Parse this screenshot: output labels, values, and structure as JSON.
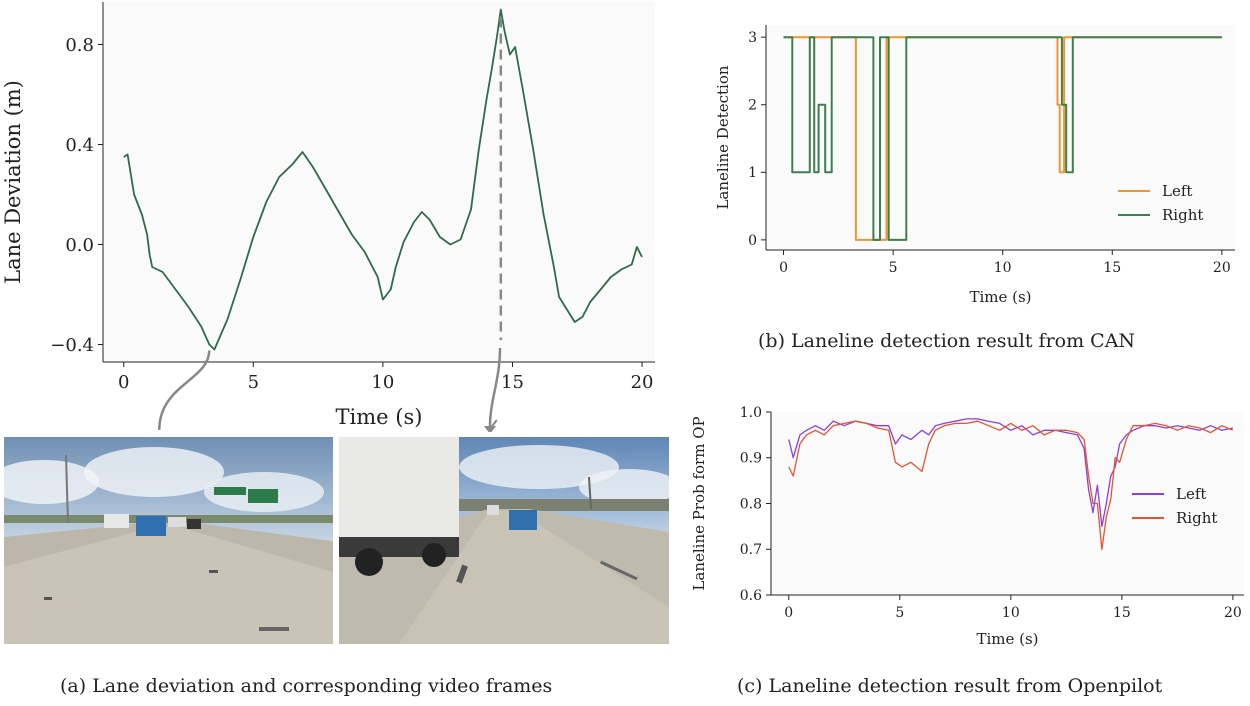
{
  "chart_data": [
    {
      "id": "a",
      "type": "line",
      "caption": "(a) Lane deviation and corresponding video frames",
      "xlabel": "Time (s)",
      "ylabel": "Lane Deviation (m)",
      "xlim": [
        -0.8,
        20.5
      ],
      "ylim": [
        -0.47,
        0.97
      ],
      "xticks": [
        0,
        5,
        10,
        15,
        20
      ],
      "yticks": [
        -0.4,
        0.0,
        0.4,
        0.8
      ],
      "ytick_labels": [
        "−0.4",
        "0.0",
        "0.4",
        "0.8"
      ],
      "series": [
        {
          "color": "#2e6b4a",
          "x": [
            0,
            0.15,
            0.4,
            0.7,
            0.9,
            1.0,
            1.1,
            1.5,
            2.0,
            2.5,
            3.0,
            3.3,
            3.5,
            4.0,
            4.5,
            5.0,
            5.5,
            6.0,
            6.5,
            6.9,
            7.3,
            7.8,
            8.3,
            8.8,
            9.3,
            9.8,
            10.0,
            10.3,
            10.5,
            10.8,
            11.2,
            11.5,
            11.8,
            12.2,
            12.6,
            13.0,
            13.4,
            13.7,
            14.0,
            14.2,
            14.4,
            14.55,
            14.7,
            14.9,
            15.1,
            15.4,
            15.8,
            16.2,
            16.6,
            16.8,
            17.1,
            17.4,
            17.7,
            18.0,
            18.4,
            18.8,
            19.2,
            19.6,
            19.8,
            20.0
          ],
          "values": [
            0.35,
            0.36,
            0.2,
            0.12,
            0.04,
            -0.04,
            -0.09,
            -0.11,
            -0.18,
            -0.25,
            -0.33,
            -0.4,
            -0.42,
            -0.3,
            -0.14,
            0.03,
            0.17,
            0.27,
            0.32,
            0.37,
            0.31,
            0.22,
            0.13,
            0.04,
            -0.03,
            -0.13,
            -0.22,
            -0.18,
            -0.09,
            0.01,
            0.09,
            0.13,
            0.1,
            0.03,
            0.0,
            0.02,
            0.14,
            0.38,
            0.58,
            0.7,
            0.83,
            0.94,
            0.85,
            0.76,
            0.79,
            0.62,
            0.38,
            0.12,
            -0.09,
            -0.21,
            -0.26,
            -0.31,
            -0.29,
            -0.23,
            -0.18,
            -0.13,
            -0.1,
            -0.08,
            -0.01,
            -0.05
          ]
        }
      ],
      "markers": [
        {
          "x": 3.3,
          "style": "arrow"
        },
        {
          "x": 14.55,
          "style": "dashed"
        }
      ]
    },
    {
      "id": "b",
      "type": "line",
      "caption": "(b) Laneline detection result from CAN",
      "xlabel": "Time (s)",
      "ylabel": "Laneline Detection",
      "xlim": [
        -0.8,
        20.6
      ],
      "ylim": [
        -0.15,
        3.18
      ],
      "xticks": [
        0,
        5,
        10,
        15,
        20
      ],
      "yticks": [
        0,
        1,
        2,
        3
      ],
      "legend": {
        "position": "right"
      },
      "series": [
        {
          "name": "Left",
          "color": "#f0962e",
          "x": [
            0,
            3.3,
            3.3,
            4.7,
            4.7,
            5.0,
            5.0,
            12.5,
            12.5,
            12.6,
            12.6,
            12.8,
            12.8,
            20
          ],
          "values": [
            3,
            3,
            0,
            0,
            3,
            3,
            3,
            3,
            2,
            2,
            1,
            1,
            3,
            3
          ]
        },
        {
          "name": "Right",
          "color": "#3f7f4f",
          "x": [
            0,
            0.4,
            0.4,
            1.2,
            1.2,
            1.4,
            1.4,
            1.6,
            1.6,
            1.9,
            1.9,
            2.2,
            2.2,
            4.1,
            4.1,
            4.4,
            4.4,
            4.8,
            4.8,
            5.2,
            5.2,
            5.6,
            5.6,
            12.7,
            12.7,
            12.9,
            12.9,
            13.2,
            13.2,
            20
          ],
          "values": [
            3,
            3,
            1,
            1,
            3,
            3,
            1,
            1,
            2,
            2,
            1,
            1,
            3,
            3,
            0,
            0,
            3,
            3,
            0,
            0,
            0,
            0,
            3,
            3,
            2,
            2,
            1,
            1,
            3,
            3
          ]
        }
      ]
    },
    {
      "id": "c",
      "type": "line",
      "caption": "(c) Laneline detection result from Openpilot",
      "xlabel": "Time (s)",
      "ylabel": "Laneline Prob form OP",
      "xlim": [
        -0.8,
        20.5
      ],
      "ylim": [
        0.6,
        1.0
      ],
      "xticks": [
        0,
        5,
        10,
        15,
        20
      ],
      "yticks": [
        0.6,
        0.7,
        0.8,
        0.9,
        1.0
      ],
      "ytick_labels": [
        "0.6",
        "0.7",
        "0.8",
        "0.9",
        "1.0"
      ],
      "legend": {
        "position": "right"
      },
      "series": [
        {
          "name": "Left",
          "color": "#8a3fe0",
          "x": [
            0,
            0.2,
            0.5,
            0.8,
            1.2,
            1.6,
            2.0,
            2.5,
            3.0,
            3.5,
            4.0,
            4.5,
            4.8,
            5.1,
            5.5,
            6.0,
            6.3,
            6.6,
            7.0,
            7.5,
            8.0,
            8.5,
            9.0,
            9.5,
            10.0,
            10.5,
            11.0,
            11.5,
            12.0,
            12.5,
            13.0,
            13.3,
            13.5,
            13.7,
            13.9,
            14.1,
            14.3,
            14.5,
            14.7,
            14.9,
            15.2,
            15.5,
            16.0,
            16.5,
            17.0,
            17.5,
            18.0,
            18.5,
            19.0,
            19.5,
            20.0
          ],
          "values": [
            0.94,
            0.9,
            0.95,
            0.96,
            0.97,
            0.96,
            0.98,
            0.97,
            0.98,
            0.975,
            0.97,
            0.97,
            0.93,
            0.95,
            0.94,
            0.96,
            0.95,
            0.97,
            0.975,
            0.98,
            0.985,
            0.985,
            0.98,
            0.975,
            0.96,
            0.97,
            0.95,
            0.96,
            0.96,
            0.955,
            0.95,
            0.92,
            0.83,
            0.78,
            0.84,
            0.75,
            0.8,
            0.86,
            0.88,
            0.93,
            0.95,
            0.96,
            0.97,
            0.97,
            0.965,
            0.97,
            0.965,
            0.96,
            0.97,
            0.96,
            0.965
          ]
        },
        {
          "name": "Right",
          "color": "#e8532a",
          "x": [
            0,
            0.2,
            0.5,
            0.8,
            1.2,
            1.6,
            2.0,
            2.5,
            3.0,
            3.5,
            4.0,
            4.5,
            4.8,
            5.1,
            5.5,
            6.0,
            6.3,
            6.6,
            7.0,
            7.5,
            8.0,
            8.5,
            9.0,
            9.5,
            10.0,
            10.5,
            11.0,
            11.5,
            12.0,
            12.5,
            13.0,
            13.3,
            13.5,
            13.7,
            13.9,
            14.1,
            14.3,
            14.5,
            14.7,
            14.9,
            15.2,
            15.5,
            16.0,
            16.5,
            17.0,
            17.5,
            18.0,
            18.5,
            19.0,
            19.5,
            20.0
          ],
          "values": [
            0.88,
            0.86,
            0.93,
            0.95,
            0.96,
            0.95,
            0.97,
            0.975,
            0.98,
            0.975,
            0.965,
            0.96,
            0.89,
            0.88,
            0.89,
            0.87,
            0.93,
            0.96,
            0.97,
            0.975,
            0.975,
            0.98,
            0.97,
            0.96,
            0.975,
            0.96,
            0.97,
            0.95,
            0.96,
            0.96,
            0.955,
            0.94,
            0.86,
            0.8,
            0.8,
            0.7,
            0.77,
            0.81,
            0.9,
            0.89,
            0.94,
            0.97,
            0.97,
            0.975,
            0.97,
            0.96,
            0.97,
            0.965,
            0.955,
            0.97,
            0.96
          ]
        }
      ]
    }
  ]
}
